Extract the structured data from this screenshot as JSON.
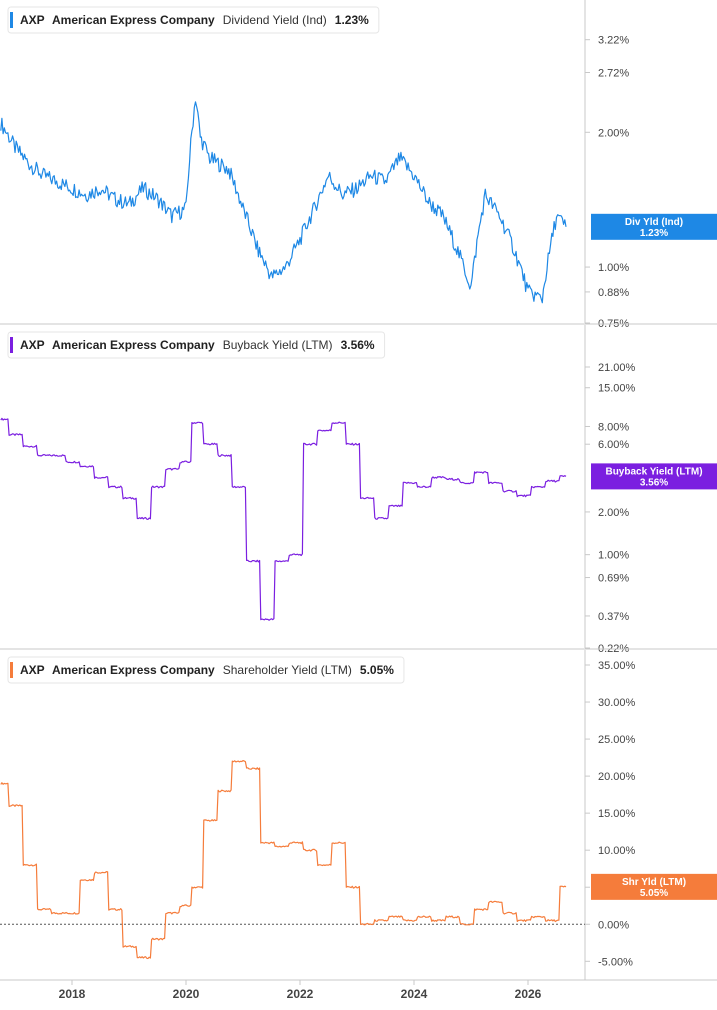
{
  "colors": {
    "dividend": "#1e88e5",
    "buyback": "#7b1fe0",
    "shareholder": "#f57c3b",
    "axis": "#c8c8c8",
    "label_text": "#444444",
    "zero_line": "#555555"
  },
  "x_axis": {
    "ticks": [
      "2018",
      "2020",
      "2022",
      "2024",
      "2026"
    ]
  },
  "chart_data": [
    {
      "type": "line",
      "ticker": "AXP",
      "company": "American Express Company",
      "metric": "Dividend Yield (Ind)",
      "current_value": "1.23%",
      "badge": {
        "line1": "Div Yld (Ind)",
        "line2": "1.23%"
      },
      "y_scale": "log",
      "ylim": [
        0.75,
        3.6
      ],
      "y_ticks": [
        {
          "value": 3.22,
          "label": "3.22%"
        },
        {
          "value": 2.72,
          "label": "2.72%"
        },
        {
          "value": 2.0,
          "label": "2.00%"
        },
        {
          "value": 1.0,
          "label": "1.00%"
        },
        {
          "value": 0.88,
          "label": "0.88%"
        },
        {
          "value": 0.75,
          "label": "0.75%"
        }
      ],
      "series": [
        {
          "x": [
            "2016-10",
            "2017-01",
            "2017-04",
            "2017-07",
            "2017-10",
            "2018-01",
            "2018-04",
            "2018-07",
            "2018-10",
            "2019-01",
            "2019-04",
            "2019-07",
            "2019-10",
            "2020-01",
            "2020-03",
            "2020-04",
            "2020-06",
            "2020-08",
            "2020-10",
            "2021-01",
            "2021-04",
            "2021-07",
            "2021-10",
            "2022-01",
            "2022-04",
            "2022-07",
            "2022-10",
            "2023-01",
            "2023-04",
            "2023-07",
            "2023-10",
            "2024-01",
            "2024-04",
            "2024-07",
            "2024-10",
            "2025-01",
            "2025-04",
            "2025-07",
            "2025-10",
            "2026-01",
            "2026-04",
            "2026-07",
            "2026-09"
          ],
          "y": [
            2.1,
            1.85,
            1.7,
            1.6,
            1.55,
            1.5,
            1.45,
            1.5,
            1.42,
            1.38,
            1.5,
            1.42,
            1.3,
            1.35,
            2.4,
            1.95,
            1.75,
            1.7,
            1.65,
            1.35,
            1.1,
            0.95,
            1.0,
            1.15,
            1.35,
            1.6,
            1.45,
            1.5,
            1.6,
            1.55,
            1.75,
            1.6,
            1.4,
            1.3,
            1.1,
            0.9,
            1.45,
            1.3,
            1.1,
            0.88,
            0.85,
            1.3,
            1.23
          ]
        }
      ]
    },
    {
      "type": "line",
      "ticker": "AXP",
      "company": "American Express Company",
      "metric": "Buyback Yield (LTM)",
      "current_value": "3.56%",
      "badge": {
        "line1": "Buyback Yield (LTM)",
        "line2": "3.56%"
      },
      "y_scale": "log",
      "ylim": [
        0.22,
        30
      ],
      "y_ticks": [
        {
          "value": 21.0,
          "label": "21.00%"
        },
        {
          "value": 15.0,
          "label": "15.00%"
        },
        {
          "value": 8.0,
          "label": "8.00%"
        },
        {
          "value": 6.0,
          "label": "6.00%"
        },
        {
          "value": 2.0,
          "label": "2.00%"
        },
        {
          "value": 1.0,
          "label": "1.00%"
        },
        {
          "value": 0.69,
          "label": "0.69%"
        },
        {
          "value": 0.37,
          "label": "0.37%"
        },
        {
          "value": 0.22,
          "label": "0.22%"
        }
      ],
      "series": [
        {
          "x": [
            "2016-10",
            "2017-01",
            "2017-04",
            "2017-07",
            "2017-10",
            "2018-01",
            "2018-04",
            "2018-07",
            "2018-10",
            "2019-01",
            "2019-04",
            "2019-07",
            "2019-10",
            "2020-01",
            "2020-03",
            "2020-06",
            "2020-09",
            "2020-12",
            "2021-03",
            "2021-06",
            "2021-09",
            "2021-12",
            "2022-03",
            "2022-06",
            "2022-09",
            "2022-12",
            "2023-03",
            "2023-06",
            "2023-09",
            "2023-12",
            "2024-03",
            "2024-06",
            "2024-09",
            "2024-12",
            "2025-03",
            "2025-06",
            "2025-09",
            "2025-12",
            "2026-03",
            "2026-06",
            "2026-09"
          ],
          "y": [
            9.0,
            7.0,
            5.8,
            5.0,
            5.0,
            4.5,
            4.2,
            3.5,
            3.0,
            2.5,
            1.8,
            3.0,
            4.0,
            4.5,
            8.5,
            6.0,
            5.0,
            3.0,
            0.9,
            0.35,
            0.9,
            1.0,
            6.0,
            7.5,
            8.5,
            6.0,
            2.5,
            1.8,
            2.2,
            3.2,
            3.0,
            3.5,
            3.4,
            3.2,
            3.8,
            3.2,
            2.8,
            2.6,
            3.0,
            3.3,
            3.56
          ]
        }
      ]
    },
    {
      "type": "line",
      "ticker": "AXP",
      "company": "American Express Company",
      "metric": "Shareholder Yield (LTM)",
      "current_value": "5.05%",
      "badge": {
        "line1": "Shr Yld (LTM)",
        "line2": "5.05%"
      },
      "y_scale": "linear",
      "ylim": [
        -5.5,
        35
      ],
      "y_ticks": [
        {
          "value": 35,
          "label": "35.00%"
        },
        {
          "value": 30,
          "label": "30.00%"
        },
        {
          "value": 25,
          "label": "25.00%"
        },
        {
          "value": 20,
          "label": "20.00%"
        },
        {
          "value": 15,
          "label": "15.00%"
        },
        {
          "value": 10,
          "label": "10.00%"
        },
        {
          "value": 5,
          "label": "5.00%"
        },
        {
          "value": 0,
          "label": "0.00%"
        },
        {
          "value": -5,
          "label": "-5.00%"
        }
      ],
      "zero_line": true,
      "series": [
        {
          "x": [
            "2016-10",
            "2017-01",
            "2017-04",
            "2017-07",
            "2017-10",
            "2018-01",
            "2018-04",
            "2018-07",
            "2018-10",
            "2019-01",
            "2019-04",
            "2019-07",
            "2019-10",
            "2020-01",
            "2020-03",
            "2020-06",
            "2020-09",
            "2020-12",
            "2021-03",
            "2021-06",
            "2021-09",
            "2021-12",
            "2022-03",
            "2022-06",
            "2022-09",
            "2022-12",
            "2023-03",
            "2023-06",
            "2023-09",
            "2023-12",
            "2024-03",
            "2024-06",
            "2024-09",
            "2024-12",
            "2025-03",
            "2025-06",
            "2025-09",
            "2025-12",
            "2026-03",
            "2026-06",
            "2026-09"
          ],
          "y": [
            19,
            16,
            8,
            2,
            1.5,
            1.5,
            6,
            7,
            2,
            -3,
            -4.5,
            -2,
            1.5,
            2.5,
            5,
            14,
            18,
            22,
            21,
            11,
            10.5,
            11,
            10,
            8,
            11,
            5,
            0,
            0.5,
            1,
            0.5,
            1,
            0.5,
            1,
            0,
            2,
            3,
            1.5,
            0.5,
            1,
            0.5,
            5.05
          ]
        }
      ]
    }
  ]
}
